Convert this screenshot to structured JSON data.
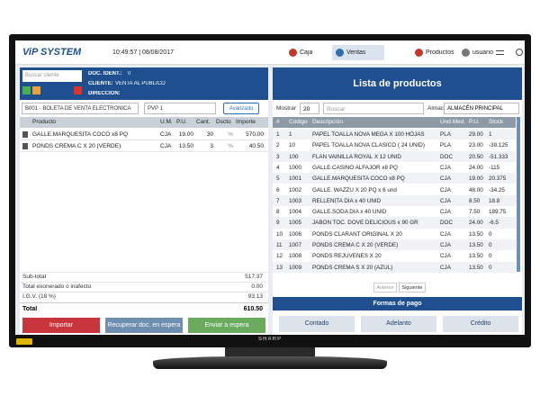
{
  "header": {
    "logo": "ViP SYSTEM",
    "datetime": "10:49:57 | 08/08/2017",
    "nav": [
      "Caja",
      "Ventas",
      "Productos",
      "usuario"
    ]
  },
  "sale": {
    "search_placeholder": "Buscar cliente",
    "client_info": [
      {
        "label": "DOC. IDENT.:",
        "value": "0"
      },
      {
        "label": "CLIENTE:",
        "value": "VENTA AL PUBLICO"
      },
      {
        "label": "DIRECCIÓN:"
      }
    ],
    "document_type": "B001 - BOLETA DE VENTA ELECTRONICA",
    "price_list": "PVP 1",
    "advanced_button": "Avanzado",
    "table": {
      "columns": [
        "Producto",
        "U.M.",
        "P.U.",
        "Cant.",
        "Dscto",
        "Importe"
      ],
      "rows": [
        [
          "GALLE.MARQUESITA COCO x8 PQ",
          "CJA",
          "19.00",
          "30",
          "%",
          "570.00"
        ],
        [
          "PONDS CREMA C X 20 (VERDE)",
          "CJA",
          "13.50",
          "3",
          "%",
          "40.50"
        ]
      ]
    },
    "totals": [
      {
        "label": "Sub-total",
        "value": "517.37"
      },
      {
        "label": "Total exonerado o inafecto",
        "value": "0.00"
      },
      {
        "label": "I.G.V. (18 %)",
        "value": "93.13"
      }
    ],
    "total": {
      "label": "Total",
      "value": "610.50"
    },
    "buttons": [
      "Importar",
      "Recuperar doc. en espera",
      "Enviar a espera"
    ]
  },
  "products": {
    "title": "Lista de productos",
    "show_label": "Mostrar",
    "page_size": "20",
    "search_placeholder": "Buscar",
    "warehouse_label": "Almac.",
    "warehouse": "ALMACÉN PRINCIPAL",
    "table": {
      "columns": [
        "#",
        "Código",
        "Descripción",
        "Und.Med.",
        "P.U.",
        "Stock"
      ],
      "rows": [
        [
          "1",
          "1",
          "PAPEL TOALLA NOVA MEGA X 100 HOJAS",
          "PLA",
          "29.00",
          "1"
        ],
        [
          "2",
          "10",
          "PAPEL TOALLA NOVA CLASICO ( 24 UNID)",
          "PLA",
          "23.00",
          "-39.125"
        ],
        [
          "3",
          "100",
          "FLAN VAINILLA ROYAL X 12 UNID",
          "DOC",
          "20.50",
          "-51.333"
        ],
        [
          "4",
          "1000",
          "GALLE.CASINO ALFAJOR x8 PQ",
          "CJA",
          "24.00",
          "-115"
        ],
        [
          "5",
          "1001",
          "GALLE.MARQUESITA COCO x8 PQ",
          "CJA",
          "19.00",
          "20.375"
        ],
        [
          "6",
          "1002",
          "GALLE. WAZZU X 20 PQ x 6 und",
          "CJA",
          "48.00",
          "-34.25"
        ],
        [
          "7",
          "1003",
          "RELLENITA DIA x 40 UNID",
          "CJA",
          "8.50",
          "18.8"
        ],
        [
          "8",
          "1004",
          "GALLE.SODA DIA x 40 UNID",
          "CJA",
          "7.50",
          "189.75"
        ],
        [
          "9",
          "1005",
          "JABON TOC. DOVE DELICIOUS x 90 GR",
          "DOC",
          "24.00",
          "-6.5"
        ],
        [
          "10",
          "1006",
          "PONDS CLARANT ORIGINAL X 20",
          "CJA",
          "13.50",
          "0"
        ],
        [
          "11",
          "1007",
          "PONDS CREMA C X 20 (VERDE)",
          "CJA",
          "13.50",
          "0"
        ],
        [
          "12",
          "1008",
          "PONDS REJUVENES X 20",
          "CJA",
          "13.50",
          "0"
        ],
        [
          "13",
          "1009",
          "PONDS CREMA S X 20 (AZUL)",
          "CJA",
          "13.50",
          "0"
        ]
      ]
    },
    "pagination": [
      "Anterior",
      "Siguiente"
    ],
    "payment_title": "Formas de pago",
    "payment_methods": [
      "Contado",
      "Adelanto",
      "Crédito"
    ]
  },
  "tv_brand": "SHARP"
}
